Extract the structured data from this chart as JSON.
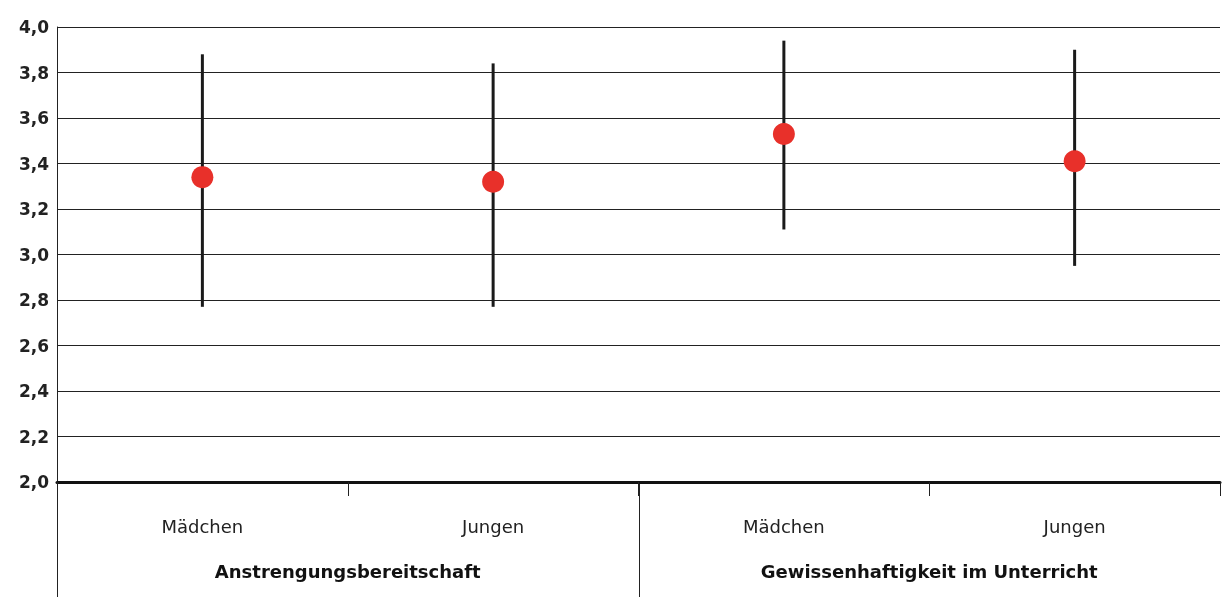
{
  "chart_data": {
    "type": "scatter",
    "categories": [
      "Mädchen",
      "Jungen",
      "Mädchen",
      "Jungen"
    ],
    "values": [
      3.34,
      3.32,
      3.53,
      3.41
    ],
    "errors": [
      [
        2.77,
        3.88
      ],
      [
        2.77,
        3.84
      ],
      [
        3.11,
        3.94
      ],
      [
        2.95,
        3.9
      ]
    ],
    "color": "#e8302a",
    "marker": "circle",
    "grid": "y",
    "ylim": [
      2,
      4
    ],
    "yticks": [
      {
        "value": 2,
        "label": "2,0"
      },
      {
        "value": 2.2,
        "label": "2,2"
      },
      {
        "value": 2.4,
        "label": "2,4"
      },
      {
        "value": 2.6,
        "label": "2,6"
      },
      {
        "value": 2.8,
        "label": "2,8"
      },
      {
        "value": 3,
        "label": "3,0"
      },
      {
        "value": 3.2,
        "label": "3,2"
      },
      {
        "value": 3.4,
        "label": "3,4"
      },
      {
        "value": 3.6,
        "label": "3,6"
      },
      {
        "value": 3.8,
        "label": "3,8"
      },
      {
        "value": 4,
        "label": "4,0"
      }
    ],
    "annotations": [
      "Anstrengungsbereitschaft",
      "Gewissenhaftigkeit im Unterricht"
    ]
  }
}
